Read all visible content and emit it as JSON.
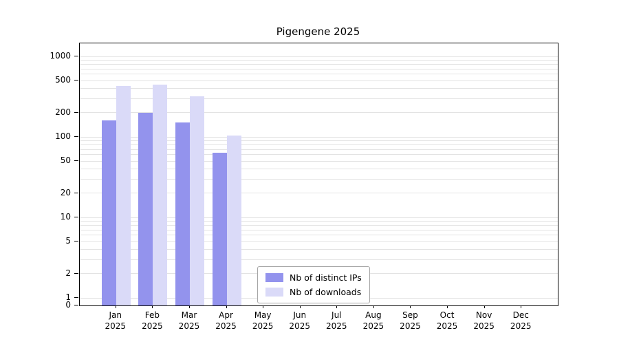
{
  "chart_data": {
    "type": "bar",
    "title": "Pigengene 2025",
    "categories": [
      "Jan",
      "Feb",
      "Mar",
      "Apr",
      "May",
      "Jun",
      "Jul",
      "Aug",
      "Sep",
      "Oct",
      "Nov",
      "Dec"
    ],
    "category_year": "2025",
    "series": [
      {
        "name": "Nb of distinct IPs",
        "color": "#9393ed",
        "values": [
          160,
          200,
          150,
          63,
          0,
          0,
          0,
          0,
          0,
          0,
          0,
          0
        ]
      },
      {
        "name": "Nb of downloads",
        "color": "#dadaf8",
        "values": [
          430,
          450,
          320,
          105,
          0,
          0,
          0,
          0,
          0,
          0,
          0,
          0
        ]
      }
    ],
    "y_ticks": [
      0,
      1,
      2,
      5,
      10,
      20,
      50,
      100,
      200,
      500,
      1000
    ],
    "grid_values": [
      1,
      2,
      3,
      4,
      5,
      6,
      7,
      8,
      9,
      10,
      20,
      30,
      40,
      50,
      60,
      70,
      80,
      90,
      100,
      200,
      300,
      400,
      500,
      600,
      700,
      800,
      900,
      1000
    ],
    "y_scale": "log",
    "ylim": [
      0,
      1000
    ],
    "grid": true,
    "legend_position": "lower center"
  }
}
